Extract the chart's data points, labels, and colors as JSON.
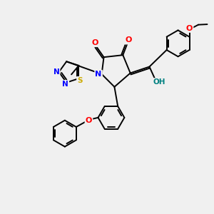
{
  "bg_color": "#f0f0f0",
  "bond_color": "#000000",
  "bond_width": 1.4,
  "figsize": [
    3.0,
    3.0
  ],
  "dpi": 100,
  "atom_colors": {
    "N": "#0000ff",
    "O": "#ff0000",
    "S": "#ccaa00",
    "C": "#000000",
    "H": "#008080"
  }
}
